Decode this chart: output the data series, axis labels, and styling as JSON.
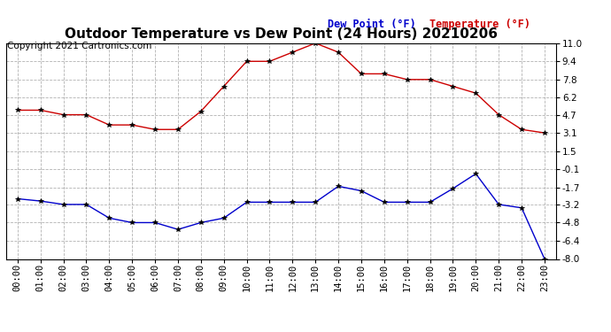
{
  "title": "Outdoor Temperature vs Dew Point (24 Hours) 20210206",
  "copyright": "Copyright 2021 Cartronics.com",
  "legend_dew": "Dew Point (°F)",
  "legend_temp": "Temperature (°F)",
  "hours": [
    "00:00",
    "01:00",
    "02:00",
    "03:00",
    "04:00",
    "05:00",
    "06:00",
    "07:00",
    "08:00",
    "09:00",
    "10:00",
    "11:00",
    "12:00",
    "13:00",
    "14:00",
    "15:00",
    "16:00",
    "17:00",
    "18:00",
    "19:00",
    "20:00",
    "21:00",
    "22:00",
    "23:00"
  ],
  "temperature": [
    5.1,
    5.1,
    4.7,
    4.7,
    3.8,
    3.8,
    3.4,
    3.4,
    5.0,
    7.2,
    9.4,
    9.4,
    10.2,
    11.0,
    10.2,
    8.3,
    8.3,
    7.8,
    7.8,
    7.2,
    6.6,
    4.7,
    3.4,
    3.1
  ],
  "dew_point": [
    -2.7,
    -2.9,
    -3.2,
    -3.2,
    -4.4,
    -4.8,
    -4.8,
    -5.4,
    -4.8,
    -4.4,
    -3.0,
    -3.0,
    -3.0,
    -3.0,
    -1.6,
    -2.0,
    -3.0,
    -3.0,
    -3.0,
    -1.8,
    -0.5,
    -3.2,
    -3.5,
    -8.0
  ],
  "temp_color": "#cc0000",
  "dew_color": "#0000cc",
  "marker_color": "black",
  "grid_color": "#aaaaaa",
  "bg_color": "#ffffff",
  "plot_bg": "#ffffff",
  "ylim_min": -8.0,
  "ylim_max": 11.0,
  "yticks": [
    11.0,
    9.4,
    7.8,
    6.2,
    4.7,
    3.1,
    1.5,
    -0.1,
    -1.7,
    -3.2,
    -4.8,
    -6.4,
    -8.0
  ],
  "title_fontsize": 11,
  "axis_fontsize": 7.5,
  "copyright_fontsize": 7.5,
  "legend_fontsize": 8.5
}
